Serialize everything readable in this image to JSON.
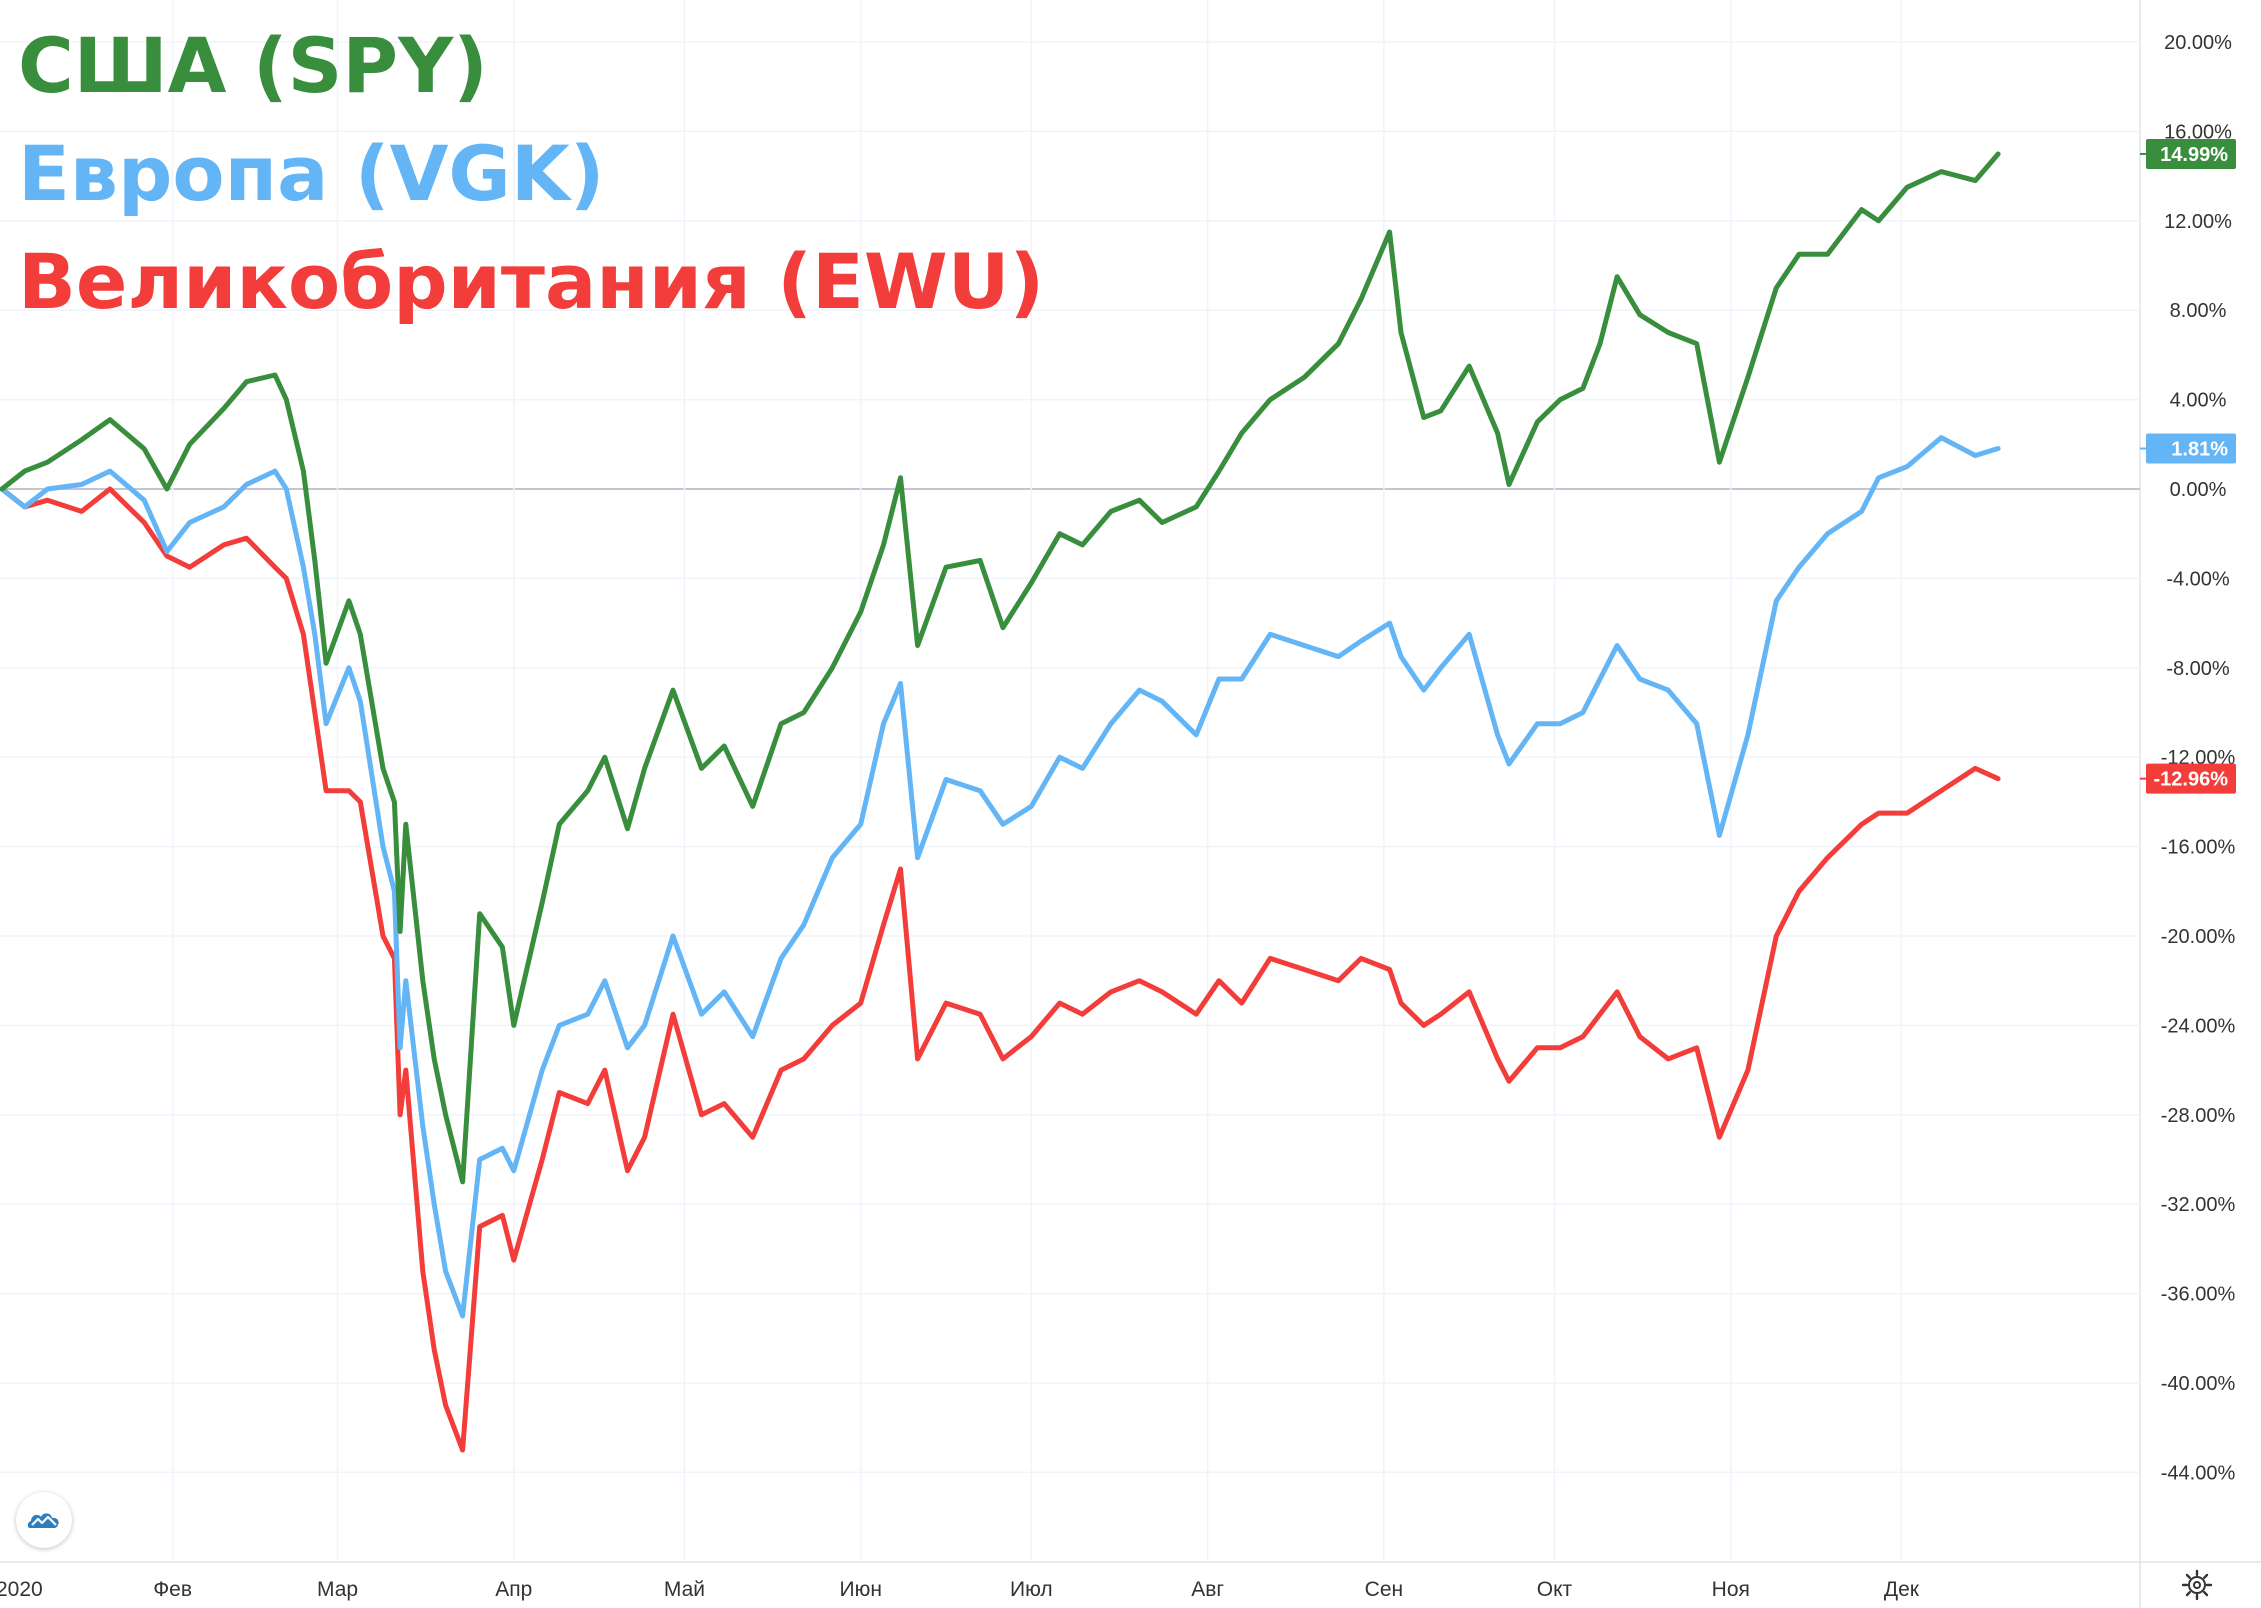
{
  "colors": {
    "spy": "#388e3c",
    "vgk": "#64b5f6",
    "ewu": "#f23d3a",
    "grid": "#f0f3fa",
    "zero_line": "#c3c6ce",
    "axis_text": "#333333"
  },
  "chart_data": {
    "type": "line",
    "legend_position": "top-left",
    "grid": true,
    "y_unit": "%",
    "ylim": [
      -48,
      22
    ],
    "x_range": [
      "2020-01-02",
      "2020-12-31"
    ],
    "y_ticks": [
      "20.00%",
      "16.00%",
      "12.00%",
      "8.00%",
      "4.00%",
      "0.00%",
      "-4.00%",
      "-8.00%",
      "-12.00%",
      "-16.00%",
      "-20.00%",
      "-24.00%",
      "-28.00%",
      "-32.00%",
      "-36.00%",
      "-40.00%",
      "-44.00%"
    ],
    "x_ticks": [
      {
        "date": "2020-01-02",
        "label": "2020"
      },
      {
        "date": "2020-02-01",
        "label": "Фев"
      },
      {
        "date": "2020-03-01",
        "label": "Мар"
      },
      {
        "date": "2020-04-01",
        "label": "Апр"
      },
      {
        "date": "2020-05-01",
        "label": "Май"
      },
      {
        "date": "2020-06-01",
        "label": "Июн"
      },
      {
        "date": "2020-07-01",
        "label": "Июл"
      },
      {
        "date": "2020-08-01",
        "label": "Авг"
      },
      {
        "date": "2020-09-01",
        "label": "Сен"
      },
      {
        "date": "2020-10-01",
        "label": "Окт"
      },
      {
        "date": "2020-11-01",
        "label": "Ноя"
      },
      {
        "date": "2020-12-01",
        "label": "Дек"
      }
    ],
    "series": [
      {
        "name": "США (SPY)",
        "key": "spy",
        "last_value": "14.99%",
        "points": [
          [
            "2020-01-02",
            0
          ],
          [
            "2020-01-06",
            0.8
          ],
          [
            "2020-01-10",
            1.2
          ],
          [
            "2020-01-16",
            2.2
          ],
          [
            "2020-01-21",
            3.1
          ],
          [
            "2020-01-27",
            1.8
          ],
          [
            "2020-01-31",
            0
          ],
          [
            "2020-02-04",
            2.0
          ],
          [
            "2020-02-10",
            3.6
          ],
          [
            "2020-02-14",
            4.8
          ],
          [
            "2020-02-19",
            5.1
          ],
          [
            "2020-02-21",
            4.0
          ],
          [
            "2020-02-24",
            0.8
          ],
          [
            "2020-02-26",
            -3.2
          ],
          [
            "2020-02-28",
            -7.8
          ],
          [
            "2020-03-03",
            -5.0
          ],
          [
            "2020-03-05",
            -6.5
          ],
          [
            "2020-03-09",
            -12.5
          ],
          [
            "2020-03-11",
            -14.0
          ],
          [
            "2020-03-12",
            -19.8
          ],
          [
            "2020-03-13",
            -15.0
          ],
          [
            "2020-03-16",
            -22.0
          ],
          [
            "2020-03-18",
            -25.5
          ],
          [
            "2020-03-20",
            -28.0
          ],
          [
            "2020-03-23",
            -31.0
          ],
          [
            "2020-03-26",
            -19.0
          ],
          [
            "2020-03-30",
            -20.5
          ],
          [
            "2020-04-01",
            -24.0
          ],
          [
            "2020-04-06",
            -18.5
          ],
          [
            "2020-04-09",
            -15.0
          ],
          [
            "2020-04-14",
            -13.5
          ],
          [
            "2020-04-17",
            -12.0
          ],
          [
            "2020-04-21",
            -15.2
          ],
          [
            "2020-04-24",
            -12.5
          ],
          [
            "2020-04-29",
            -9.0
          ],
          [
            "2020-05-04",
            -12.5
          ],
          [
            "2020-05-08",
            -11.5
          ],
          [
            "2020-05-13",
            -14.2
          ],
          [
            "2020-05-18",
            -10.5
          ],
          [
            "2020-05-22",
            -10.0
          ],
          [
            "2020-05-27",
            -8.0
          ],
          [
            "2020-06-01",
            -5.5
          ],
          [
            "2020-06-05",
            -2.5
          ],
          [
            "2020-06-08",
            0.5
          ],
          [
            "2020-06-11",
            -7.0
          ],
          [
            "2020-06-16",
            -3.5
          ],
          [
            "2020-06-22",
            -3.2
          ],
          [
            "2020-06-26",
            -6.2
          ],
          [
            "2020-07-01",
            -4.2
          ],
          [
            "2020-07-06",
            -2.0
          ],
          [
            "2020-07-10",
            -2.5
          ],
          [
            "2020-07-15",
            -1.0
          ],
          [
            "2020-07-20",
            -0.5
          ],
          [
            "2020-07-24",
            -1.5
          ],
          [
            "2020-07-30",
            -0.8
          ],
          [
            "2020-08-03",
            0.8
          ],
          [
            "2020-08-07",
            2.5
          ],
          [
            "2020-08-12",
            4.0
          ],
          [
            "2020-08-18",
            5.0
          ],
          [
            "2020-08-24",
            6.5
          ],
          [
            "2020-08-28",
            8.5
          ],
          [
            "2020-09-02",
            11.5
          ],
          [
            "2020-09-04",
            7.0
          ],
          [
            "2020-09-08",
            3.2
          ],
          [
            "2020-09-11",
            3.5
          ],
          [
            "2020-09-16",
            5.5
          ],
          [
            "2020-09-21",
            2.5
          ],
          [
            "2020-09-23",
            0.2
          ],
          [
            "2020-09-28",
            3.0
          ],
          [
            "2020-10-02",
            4.0
          ],
          [
            "2020-10-06",
            4.5
          ],
          [
            "2020-10-09",
            6.5
          ],
          [
            "2020-10-12",
            9.5
          ],
          [
            "2020-10-16",
            7.8
          ],
          [
            "2020-10-21",
            7.0
          ],
          [
            "2020-10-26",
            6.5
          ],
          [
            "2020-10-30",
            1.2
          ],
          [
            "2020-11-04",
            5.0
          ],
          [
            "2020-11-09",
            9.0
          ],
          [
            "2020-11-13",
            10.5
          ],
          [
            "2020-11-18",
            10.5
          ],
          [
            "2020-11-24",
            12.5
          ],
          [
            "2020-11-27",
            12.0
          ],
          [
            "2020-12-02",
            13.5
          ],
          [
            "2020-12-08",
            14.2
          ],
          [
            "2020-12-14",
            13.8
          ],
          [
            "2020-12-18",
            14.99
          ]
        ]
      },
      {
        "name": "Европа (VGK)",
        "key": "vgk",
        "last_value": "1.81%",
        "points": [
          [
            "2020-01-02",
            0
          ],
          [
            "2020-01-06",
            -0.8
          ],
          [
            "2020-01-10",
            0
          ],
          [
            "2020-01-16",
            0.2
          ],
          [
            "2020-01-21",
            0.8
          ],
          [
            "2020-01-27",
            -0.5
          ],
          [
            "2020-01-31",
            -2.8
          ],
          [
            "2020-02-04",
            -1.5
          ],
          [
            "2020-02-10",
            -0.8
          ],
          [
            "2020-02-14",
            0.2
          ],
          [
            "2020-02-19",
            0.8
          ],
          [
            "2020-02-21",
            0
          ],
          [
            "2020-02-24",
            -3.5
          ],
          [
            "2020-02-26",
            -6.5
          ],
          [
            "2020-02-28",
            -10.5
          ],
          [
            "2020-03-03",
            -8.0
          ],
          [
            "2020-03-05",
            -9.5
          ],
          [
            "2020-03-09",
            -16.0
          ],
          [
            "2020-03-11",
            -18.0
          ],
          [
            "2020-03-12",
            -25.0
          ],
          [
            "2020-03-13",
            -22.0
          ],
          [
            "2020-03-16",
            -28.5
          ],
          [
            "2020-03-18",
            -32.0
          ],
          [
            "2020-03-20",
            -35.0
          ],
          [
            "2020-03-23",
            -37.0
          ],
          [
            "2020-03-26",
            -30.0
          ],
          [
            "2020-03-30",
            -29.5
          ],
          [
            "2020-04-01",
            -30.5
          ],
          [
            "2020-04-06",
            -26.0
          ],
          [
            "2020-04-09",
            -24.0
          ],
          [
            "2020-04-14",
            -23.5
          ],
          [
            "2020-04-17",
            -22.0
          ],
          [
            "2020-04-21",
            -25.0
          ],
          [
            "2020-04-24",
            -24.0
          ],
          [
            "2020-04-29",
            -20.0
          ],
          [
            "2020-05-04",
            -23.5
          ],
          [
            "2020-05-08",
            -22.5
          ],
          [
            "2020-05-13",
            -24.5
          ],
          [
            "2020-05-18",
            -21.0
          ],
          [
            "2020-05-22",
            -19.5
          ],
          [
            "2020-05-27",
            -16.5
          ],
          [
            "2020-06-01",
            -15.0
          ],
          [
            "2020-06-05",
            -10.5
          ],
          [
            "2020-06-08",
            -8.7
          ],
          [
            "2020-06-11",
            -16.5
          ],
          [
            "2020-06-16",
            -13.0
          ],
          [
            "2020-06-22",
            -13.5
          ],
          [
            "2020-06-26",
            -15.0
          ],
          [
            "2020-07-01",
            -14.2
          ],
          [
            "2020-07-06",
            -12.0
          ],
          [
            "2020-07-10",
            -12.5
          ],
          [
            "2020-07-15",
            -10.5
          ],
          [
            "2020-07-20",
            -9.0
          ],
          [
            "2020-07-24",
            -9.5
          ],
          [
            "2020-07-30",
            -11.0
          ],
          [
            "2020-08-03",
            -8.5
          ],
          [
            "2020-08-07",
            -8.5
          ],
          [
            "2020-08-12",
            -6.5
          ],
          [
            "2020-08-18",
            -7.0
          ],
          [
            "2020-08-24",
            -7.5
          ],
          [
            "2020-08-28",
            -6.8
          ],
          [
            "2020-09-02",
            -6.0
          ],
          [
            "2020-09-04",
            -7.5
          ],
          [
            "2020-09-08",
            -9.0
          ],
          [
            "2020-09-11",
            -8.0
          ],
          [
            "2020-09-16",
            -6.5
          ],
          [
            "2020-09-21",
            -11.0
          ],
          [
            "2020-09-23",
            -12.3
          ],
          [
            "2020-09-28",
            -10.5
          ],
          [
            "2020-10-02",
            -10.5
          ],
          [
            "2020-10-06",
            -10.0
          ],
          [
            "2020-10-09",
            -8.5
          ],
          [
            "2020-10-12",
            -7.0
          ],
          [
            "2020-10-16",
            -8.5
          ],
          [
            "2020-10-21",
            -9.0
          ],
          [
            "2020-10-26",
            -10.5
          ],
          [
            "2020-10-30",
            -15.5
          ],
          [
            "2020-11-04",
            -11.0
          ],
          [
            "2020-11-09",
            -5.0
          ],
          [
            "2020-11-13",
            -3.5
          ],
          [
            "2020-11-18",
            -2.0
          ],
          [
            "2020-11-24",
            -1.0
          ],
          [
            "2020-11-27",
            0.5
          ],
          [
            "2020-12-02",
            1.0
          ],
          [
            "2020-12-08",
            2.3
          ],
          [
            "2020-12-14",
            1.5
          ],
          [
            "2020-12-18",
            1.81
          ]
        ]
      },
      {
        "name": "Великобритания (EWU)",
        "key": "ewu",
        "last_value": "-12.96%",
        "points": [
          [
            "2020-01-02",
            0
          ],
          [
            "2020-01-06",
            -0.8
          ],
          [
            "2020-01-10",
            -0.5
          ],
          [
            "2020-01-16",
            -1.0
          ],
          [
            "2020-01-21",
            0
          ],
          [
            "2020-01-27",
            -1.5
          ],
          [
            "2020-01-31",
            -3.0
          ],
          [
            "2020-02-04",
            -3.5
          ],
          [
            "2020-02-10",
            -2.5
          ],
          [
            "2020-02-14",
            -2.2
          ],
          [
            "2020-02-19",
            -3.5
          ],
          [
            "2020-02-21",
            -4.0
          ],
          [
            "2020-02-24",
            -6.5
          ],
          [
            "2020-02-26",
            -10.0
          ],
          [
            "2020-02-28",
            -13.5
          ],
          [
            "2020-03-03",
            -13.5
          ],
          [
            "2020-03-05",
            -14.0
          ],
          [
            "2020-03-09",
            -20.0
          ],
          [
            "2020-03-11",
            -21.0
          ],
          [
            "2020-03-12",
            -28.0
          ],
          [
            "2020-03-13",
            -26.0
          ],
          [
            "2020-03-16",
            -35.0
          ],
          [
            "2020-03-18",
            -38.5
          ],
          [
            "2020-03-20",
            -41.0
          ],
          [
            "2020-03-23",
            -43.0
          ],
          [
            "2020-03-26",
            -33.0
          ],
          [
            "2020-03-30",
            -32.5
          ],
          [
            "2020-04-01",
            -34.5
          ],
          [
            "2020-04-06",
            -30.0
          ],
          [
            "2020-04-09",
            -27.0
          ],
          [
            "2020-04-14",
            -27.5
          ],
          [
            "2020-04-17",
            -26.0
          ],
          [
            "2020-04-21",
            -30.5
          ],
          [
            "2020-04-24",
            -29.0
          ],
          [
            "2020-04-29",
            -23.5
          ],
          [
            "2020-05-04",
            -28.0
          ],
          [
            "2020-05-08",
            -27.5
          ],
          [
            "2020-05-13",
            -29.0
          ],
          [
            "2020-05-18",
            -26.0
          ],
          [
            "2020-05-22",
            -25.5
          ],
          [
            "2020-05-27",
            -24.0
          ],
          [
            "2020-06-01",
            -23.0
          ],
          [
            "2020-06-05",
            -19.5
          ],
          [
            "2020-06-08",
            -17.0
          ],
          [
            "2020-06-11",
            -25.5
          ],
          [
            "2020-06-16",
            -23.0
          ],
          [
            "2020-06-22",
            -23.5
          ],
          [
            "2020-06-26",
            -25.5
          ],
          [
            "2020-07-01",
            -24.5
          ],
          [
            "2020-07-06",
            -23.0
          ],
          [
            "2020-07-10",
            -23.5
          ],
          [
            "2020-07-15",
            -22.5
          ],
          [
            "2020-07-20",
            -22.0
          ],
          [
            "2020-07-24",
            -22.5
          ],
          [
            "2020-07-30",
            -23.5
          ],
          [
            "2020-08-03",
            -22.0
          ],
          [
            "2020-08-07",
            -23.0
          ],
          [
            "2020-08-12",
            -21.0
          ],
          [
            "2020-08-18",
            -21.5
          ],
          [
            "2020-08-24",
            -22.0
          ],
          [
            "2020-08-28",
            -21.0
          ],
          [
            "2020-09-02",
            -21.5
          ],
          [
            "2020-09-04",
            -23.0
          ],
          [
            "2020-09-08",
            -24.0
          ],
          [
            "2020-09-11",
            -23.5
          ],
          [
            "2020-09-16",
            -22.5
          ],
          [
            "2020-09-21",
            -25.5
          ],
          [
            "2020-09-23",
            -26.5
          ],
          [
            "2020-09-28",
            -25.0
          ],
          [
            "2020-10-02",
            -25.0
          ],
          [
            "2020-10-06",
            -24.5
          ],
          [
            "2020-10-09",
            -23.5
          ],
          [
            "2020-10-12",
            -22.5
          ],
          [
            "2020-10-16",
            -24.5
          ],
          [
            "2020-10-21",
            -25.5
          ],
          [
            "2020-10-26",
            -25.0
          ],
          [
            "2020-10-30",
            -29.0
          ],
          [
            "2020-11-04",
            -26.0
          ],
          [
            "2020-11-09",
            -20.0
          ],
          [
            "2020-11-13",
            -18.0
          ],
          [
            "2020-11-18",
            -16.5
          ],
          [
            "2020-11-24",
            -15.0
          ],
          [
            "2020-11-27",
            -14.5
          ],
          [
            "2020-12-02",
            -14.5
          ],
          [
            "2020-12-08",
            -13.5
          ],
          [
            "2020-12-14",
            -12.5
          ],
          [
            "2020-12-18",
            -12.96
          ]
        ]
      }
    ]
  },
  "icons": {
    "logo": "tradingview-cloud-icon",
    "settings": "gear-icon"
  }
}
